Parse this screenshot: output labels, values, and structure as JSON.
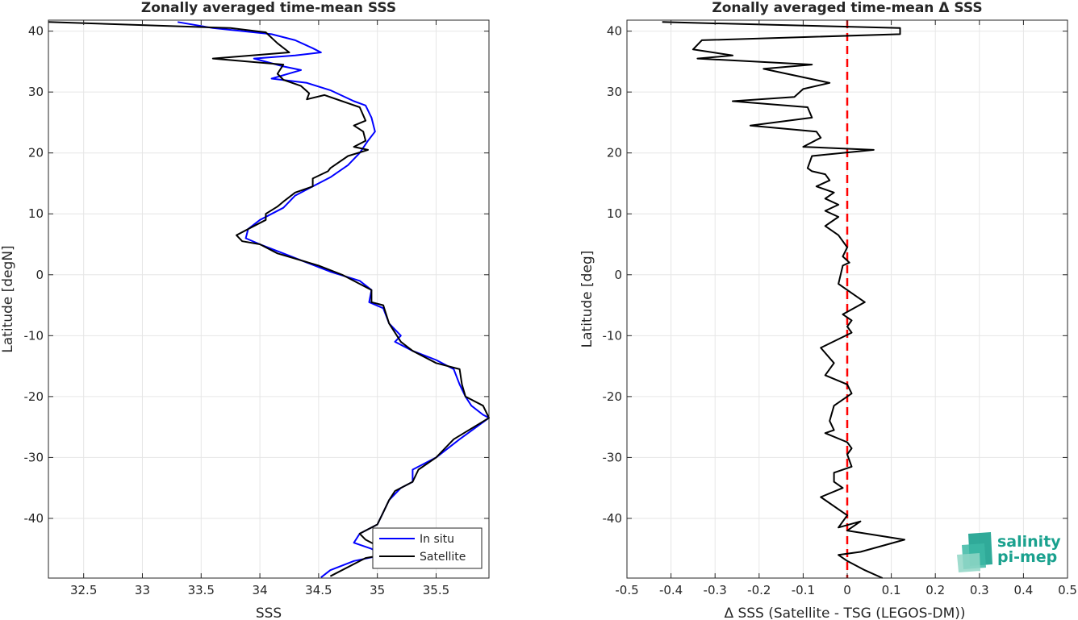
{
  "chart_data": [
    {
      "type": "line",
      "title": "Zonally averaged time-mean SSS",
      "xlabel": "SSS",
      "ylabel": "Latitude [degN]",
      "xlim": [
        32.2,
        35.95
      ],
      "ylim": [
        -49.8,
        41.8
      ],
      "xticks": [
        "32.5",
        "33",
        "33.5",
        "34",
        "34.5",
        "35",
        "35.5"
      ],
      "yticks": [
        "40",
        "30",
        "20",
        "10",
        "0",
        "-10",
        "-20",
        "-30",
        "-40"
      ],
      "grid": true,
      "legend_position": "bottom-right",
      "series": [
        {
          "name": "In situ",
          "color": "#0000ff",
          "points": [
            [
              33.3,
              41.5
            ],
            [
              33.6,
              40.5
            ],
            [
              34.1,
              39.5
            ],
            [
              34.3,
              38.5
            ],
            [
              34.45,
              37.2
            ],
            [
              34.52,
              36.5
            ],
            [
              34.3,
              36.0
            ],
            [
              33.95,
              35.5
            ],
            [
              34.2,
              34.2
            ],
            [
              34.35,
              33.6
            ],
            [
              34.1,
              32.2
            ],
            [
              34.4,
              31.5
            ],
            [
              34.6,
              30.3
            ],
            [
              34.8,
              28.5
            ],
            [
              34.9,
              27.8
            ],
            [
              34.95,
              25.8
            ],
            [
              34.98,
              23.5
            ],
            [
              34.92,
              22.0
            ],
            [
              34.85,
              20.0
            ],
            [
              34.75,
              18.0
            ],
            [
              34.6,
              16.0
            ],
            [
              34.4,
              14.0
            ],
            [
              34.3,
              13.0
            ],
            [
              34.2,
              11.0
            ],
            [
              34.0,
              9.0
            ],
            [
              33.9,
              7.5
            ],
            [
              33.88,
              6.0
            ],
            [
              34.0,
              5.0
            ],
            [
              34.2,
              3.5
            ],
            [
              34.4,
              2.0
            ],
            [
              34.6,
              0.5
            ],
            [
              34.85,
              -1.0
            ],
            [
              34.95,
              -2.5
            ],
            [
              34.93,
              -4.5
            ],
            [
              35.05,
              -5.5
            ],
            [
              35.1,
              -8.0
            ],
            [
              35.2,
              -10.0
            ],
            [
              35.15,
              -11.0
            ],
            [
              35.3,
              -12.5
            ],
            [
              35.5,
              -14.0
            ],
            [
              35.65,
              -15.5
            ],
            [
              35.7,
              -18.0
            ],
            [
              35.75,
              -20.0
            ],
            [
              35.8,
              -21.5
            ],
            [
              35.9,
              -23.0
            ],
            [
              35.95,
              -23.5
            ],
            [
              35.7,
              -27.0
            ],
            [
              35.5,
              -30.0
            ],
            [
              35.3,
              -32.0
            ],
            [
              35.3,
              -34.0
            ],
            [
              35.2,
              -35.0
            ],
            [
              35.1,
              -37.0
            ],
            [
              35.05,
              -39.0
            ],
            [
              35.0,
              -41.0
            ],
            [
              34.85,
              -42.5
            ],
            [
              34.8,
              -44.0
            ],
            [
              34.95,
              -45.0
            ],
            [
              35.05,
              -46.0
            ],
            [
              34.8,
              -47.0
            ],
            [
              34.6,
              -48.5
            ],
            [
              34.52,
              -49.7
            ]
          ]
        },
        {
          "name": "Satellite",
          "color": "#000000",
          "points": [
            [
              32.2,
              41.5
            ],
            [
              33.75,
              40.5
            ],
            [
              34.05,
              39.8
            ],
            [
              34.15,
              38.0
            ],
            [
              34.25,
              36.5
            ],
            [
              33.6,
              35.5
            ],
            [
              34.2,
              34.5
            ],
            [
              34.15,
              33.0
            ],
            [
              34.2,
              32.0
            ],
            [
              34.35,
              31.0
            ],
            [
              34.42,
              29.8
            ],
            [
              34.4,
              28.8
            ],
            [
              34.55,
              29.5
            ],
            [
              34.7,
              28.5
            ],
            [
              34.85,
              27.5
            ],
            [
              34.9,
              25.3
            ],
            [
              34.8,
              24.5
            ],
            [
              34.88,
              23.5
            ],
            [
              34.9,
              22.0
            ],
            [
              34.8,
              21.0
            ],
            [
              34.92,
              20.5
            ],
            [
              34.75,
              19.5
            ],
            [
              34.6,
              17.5
            ],
            [
              34.58,
              17.0
            ],
            [
              34.45,
              15.8
            ],
            [
              34.45,
              14.5
            ],
            [
              34.3,
              13.5
            ],
            [
              34.2,
              12.0
            ],
            [
              34.15,
              11.2
            ],
            [
              34.05,
              10.0
            ],
            [
              34.05,
              9.0
            ],
            [
              33.95,
              8.0
            ],
            [
              33.8,
              6.5
            ],
            [
              33.85,
              5.5
            ],
            [
              34.0,
              5.0
            ],
            [
              34.15,
              3.5
            ],
            [
              34.5,
              1.5
            ],
            [
              34.7,
              0.0
            ],
            [
              34.95,
              -2.5
            ],
            [
              34.95,
              -4.5
            ],
            [
              35.05,
              -5.0
            ],
            [
              35.1,
              -8.0
            ],
            [
              35.15,
              -9.5
            ],
            [
              35.2,
              -11.0
            ],
            [
              35.3,
              -12.5
            ],
            [
              35.5,
              -14.5
            ],
            [
              35.7,
              -15.5
            ],
            [
              35.72,
              -18.0
            ],
            [
              35.75,
              -20.0
            ],
            [
              35.9,
              -21.5
            ],
            [
              35.95,
              -23.5
            ],
            [
              35.65,
              -27.0
            ],
            [
              35.5,
              -30.0
            ],
            [
              35.35,
              -32.0
            ],
            [
              35.3,
              -34.0
            ],
            [
              35.15,
              -35.5
            ],
            [
              35.1,
              -37.0
            ],
            [
              35.05,
              -39.0
            ],
            [
              35.0,
              -41.0
            ],
            [
              34.85,
              -42.5
            ],
            [
              34.9,
              -43.5
            ],
            [
              35.0,
              -44.5
            ],
            [
              35.05,
              -46.0
            ],
            [
              34.9,
              -46.5
            ],
            [
              34.6,
              -49.5
            ]
          ]
        }
      ]
    },
    {
      "type": "line",
      "title": "Zonally averaged time-mean Δ SSS",
      "xlabel": "Δ SSS (Satellite - TSG (LEGOS-DM))",
      "ylabel": "Latitude [deg]",
      "xlim": [
        -0.5,
        0.5
      ],
      "ylim": [
        -49.8,
        41.8
      ],
      "xticks": [
        "-0.5",
        "-0.4",
        "-0.3",
        "-0.2",
        "-0.1",
        "0",
        "0.1",
        "0.2",
        "0.3",
        "0.4",
        "0.5"
      ],
      "yticks": [
        "40",
        "30",
        "20",
        "10",
        "0",
        "-10",
        "-20",
        "-30",
        "-40"
      ],
      "grid": true,
      "reference_line": {
        "x": 0,
        "color": "#ff0000",
        "style": "dashed"
      },
      "series": [
        {
          "color": "#000000",
          "points": [
            [
              -0.42,
              41.5
            ],
            [
              0.12,
              40.5
            ],
            [
              0.12,
              39.5
            ],
            [
              -0.33,
              38.5
            ],
            [
              -0.35,
              37.0
            ],
            [
              -0.26,
              36.0
            ],
            [
              -0.34,
              35.5
            ],
            [
              -0.08,
              34.5
            ],
            [
              -0.19,
              33.8
            ],
            [
              -0.04,
              31.5
            ],
            [
              -0.1,
              30.5
            ],
            [
              -0.12,
              29.2
            ],
            [
              -0.26,
              28.5
            ],
            [
              -0.09,
              27.5
            ],
            [
              -0.08,
              25.8
            ],
            [
              -0.22,
              24.5
            ],
            [
              -0.07,
              23.5
            ],
            [
              -0.06,
              22.5
            ],
            [
              -0.1,
              21.0
            ],
            [
              0.06,
              20.5
            ],
            [
              -0.08,
              19.5
            ],
            [
              -0.09,
              17.5
            ],
            [
              -0.08,
              17.0
            ],
            [
              -0.05,
              16.5
            ],
            [
              -0.04,
              15.5
            ],
            [
              -0.07,
              14.5
            ],
            [
              -0.03,
              13.5
            ],
            [
              -0.05,
              12.5
            ],
            [
              -0.02,
              11.5
            ],
            [
              -0.05,
              10.5
            ],
            [
              -0.02,
              9.5
            ],
            [
              -0.05,
              8.0
            ],
            [
              -0.02,
              6.5
            ],
            [
              0.0,
              4.5
            ],
            [
              -0.01,
              3.0
            ],
            [
              0.005,
              2.0
            ],
            [
              -0.01,
              1.5
            ],
            [
              -0.02,
              -1.5
            ],
            [
              0.0,
              -2.5
            ],
            [
              0.04,
              -4.5
            ],
            [
              -0.01,
              -6.5
            ],
            [
              0.01,
              -7.5
            ],
            [
              0.0,
              -8.5
            ],
            [
              0.01,
              -9.5
            ],
            [
              -0.06,
              -12.0
            ],
            [
              -0.03,
              -14.5
            ],
            [
              -0.05,
              -16.5
            ],
            [
              0.0,
              -18.0
            ],
            [
              0.01,
              -19.5
            ],
            [
              -0.03,
              -21.5
            ],
            [
              -0.04,
              -24.0
            ],
            [
              -0.03,
              -25.5
            ],
            [
              -0.05,
              -26.0
            ],
            [
              0.0,
              -27.5
            ],
            [
              0.01,
              -28.5
            ],
            [
              0.0,
              -29.5
            ],
            [
              0.01,
              -31.5
            ],
            [
              -0.03,
              -32.5
            ],
            [
              -0.03,
              -34.0
            ],
            [
              -0.01,
              -35.0
            ],
            [
              -0.06,
              -36.5
            ],
            [
              0.0,
              -39.5
            ],
            [
              -0.02,
              -41.5
            ],
            [
              0.03,
              -40.5
            ],
            [
              0.0,
              -42.0
            ],
            [
              0.13,
              -43.5
            ],
            [
              0.03,
              -45.5
            ],
            [
              -0.02,
              -46.0
            ],
            [
              0.0,
              -47.0
            ],
            [
              0.04,
              -48.5
            ],
            [
              0.08,
              -49.8
            ]
          ]
        }
      ]
    }
  ],
  "legend": {
    "items": [
      "In situ",
      "Satellite"
    ]
  },
  "logo": {
    "line1": "salinity",
    "line2": "pi-mep"
  }
}
